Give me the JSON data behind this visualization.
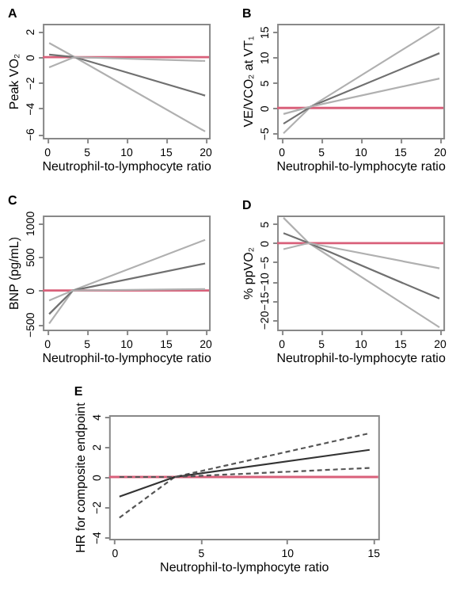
{
  "chart_data": [
    {
      "type": "line",
      "title": "A",
      "xlabel": "Neutrophil-to-lymphocyte ratio",
      "ylabel": "Peak VO₂",
      "xlim": [
        -0.5,
        20.5
      ],
      "xticks": [
        0,
        5,
        10,
        15,
        20
      ],
      "ylim": [
        -6.3,
        2.6
      ],
      "yticks": [
        -6,
        -4,
        -2,
        0,
        2
      ],
      "grid": false,
      "series": [
        {
          "color": "#b0b0b0",
          "x": [
            0.3,
            3.5,
            20
          ],
          "values": [
            1.1,
            0,
            -5.8
          ]
        },
        {
          "color": "#707070",
          "x": [
            0.3,
            3.5,
            20
          ],
          "values": [
            0.2,
            0,
            -3.0
          ]
        },
        {
          "color": "#b0b0b0",
          "x": [
            0.3,
            3.5,
            20
          ],
          "values": [
            -0.8,
            0,
            -0.3
          ]
        }
      ],
      "ref_lines": [
        {
          "axis": "y",
          "value": 0,
          "color": "#d9607a"
        }
      ]
    },
    {
      "type": "line",
      "title": "B",
      "xlabel": "Neutrophil-to-lymphocyte ratio",
      "ylabel": "VE/VCO₂ at VT₁",
      "xlim": [
        -0.5,
        20.5
      ],
      "xticks": [
        0,
        5,
        10,
        15,
        20
      ],
      "ylim": [
        -5.9,
        16.6
      ],
      "yticks": [
        -5,
        0,
        5,
        10,
        15
      ],
      "grid": false,
      "series": [
        {
          "color": "#b0b0b0",
          "x": [
            0.3,
            3.8,
            20
          ],
          "values": [
            -5.0,
            0.3,
            16.0
          ]
        },
        {
          "color": "#707070",
          "x": [
            0.3,
            3.8,
            20
          ],
          "values": [
            -3.1,
            0.3,
            10.8
          ]
        },
        {
          "color": "#b0b0b0",
          "x": [
            0.3,
            3.8,
            20
          ],
          "values": [
            -1.2,
            0.3,
            5.8
          ]
        }
      ],
      "ref_lines": [
        {
          "axis": "y",
          "value": 0,
          "color": "#d9607a"
        }
      ]
    },
    {
      "type": "line",
      "title": "C",
      "xlabel": "Neutrophil-to-lymphocyte ratio",
      "ylabel": "BNP (pg/mL)",
      "xlim": [
        -0.5,
        20.5
      ],
      "xticks": [
        0,
        5,
        10,
        15,
        20
      ],
      "ylim": [
        -580,
        1110
      ],
      "yticks": [
        -500,
        0,
        500,
        {
          "value": 1000,
          "label": "1000"
        }
      ],
      "grid": false,
      "series": [
        {
          "color": "#b0b0b0",
          "x": [
            0.3,
            3.3,
            20
          ],
          "values": [
            -490,
            0,
            750
          ]
        },
        {
          "color": "#707070",
          "x": [
            0.3,
            3.3,
            20
          ],
          "values": [
            -350,
            0,
            400
          ]
        },
        {
          "color": "#b0b0b0",
          "x": [
            0.3,
            3.3,
            20
          ],
          "values": [
            -150,
            0,
            20
          ]
        }
      ],
      "ref_lines": [
        {
          "axis": "y",
          "value": 0,
          "color": "#d9607a"
        }
      ]
    },
    {
      "type": "line",
      "title": "D",
      "xlabel": "Neutrophil-to-lymphocyte ratio",
      "ylabel": "% ppVO₂",
      "xlim": [
        -0.5,
        20.5
      ],
      "xticks": [
        0,
        5,
        10,
        15,
        20
      ],
      "ylim": [
        -22.6,
        7.2
      ],
      "yticks": [
        -20,
        -15,
        -10,
        -5,
        0,
        5
      ],
      "grid": false,
      "series": [
        {
          "color": "#b0b0b0",
          "x": [
            0.3,
            3.5,
            20
          ],
          "values": [
            6.6,
            0,
            -22.0
          ]
        },
        {
          "color": "#707070",
          "x": [
            0.3,
            3.5,
            20
          ],
          "values": [
            2.6,
            0,
            -14.5
          ]
        },
        {
          "color": "#b0b0b0",
          "x": [
            0.3,
            3.5,
            20
          ],
          "values": [
            -1.6,
            0,
            -6.6
          ]
        }
      ],
      "ref_lines": [
        {
          "axis": "y",
          "value": 0,
          "color": "#d9607a"
        }
      ]
    },
    {
      "type": "line",
      "title": "E",
      "xlabel": "Neutrophil-to-lymphocyte ratio",
      "ylabel": "HR for composite endpoint",
      "xlim": [
        -0.3,
        15.3
      ],
      "xticks": [
        0,
        5,
        10,
        15
      ],
      "ylim": [
        -4.1,
        4.1
      ],
      "yticks": [
        -4,
        -2,
        0,
        2,
        4
      ],
      "grid": false,
      "series": [
        {
          "color": "#555555",
          "line_style": "dashed",
          "x": [
            0.3,
            3.5,
            14.8
          ],
          "values": [
            -2.7,
            0,
            2.9
          ]
        },
        {
          "color": "#333333",
          "line_style": "solid",
          "x": [
            0.3,
            3.5,
            14.8
          ],
          "values": [
            -1.3,
            0,
            1.8
          ]
        },
        {
          "color": "#555555",
          "line_style": "dashed",
          "x": [
            0.3,
            3.5,
            14.8
          ],
          "values": [
            0.0,
            0,
            0.6
          ]
        }
      ],
      "ref_lines": [
        {
          "axis": "y",
          "value": 0,
          "color": "#d9607a"
        }
      ]
    }
  ]
}
